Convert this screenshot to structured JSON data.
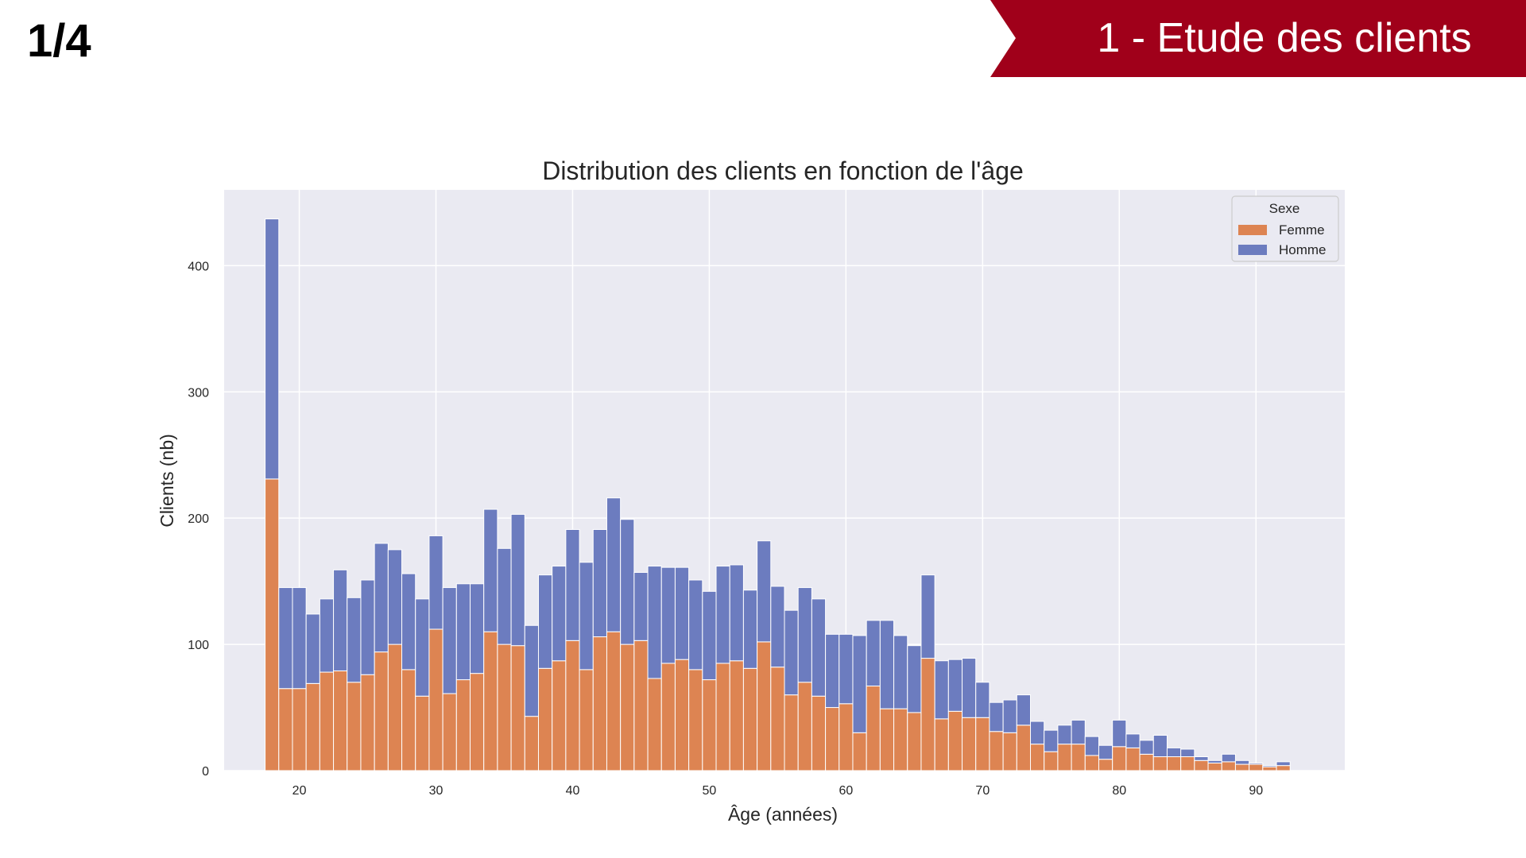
{
  "slide": {
    "number": "1/4",
    "section_title": "1 - Etude des clients",
    "banner_color": "#A0001A"
  },
  "chart_data": {
    "type": "bar",
    "stacked": true,
    "title": "Distribution des clients en fonction de l'âge",
    "xlabel": "Âge (années)",
    "ylabel": "Clients (nb)",
    "xlim": [
      14.5,
      96.5
    ],
    "ylim": [
      0,
      460
    ],
    "xticks": [
      20,
      30,
      40,
      50,
      60,
      70,
      80,
      90
    ],
    "yticks": [
      0,
      100,
      200,
      300,
      400
    ],
    "grid": true,
    "legend": {
      "title": "Sexe",
      "placement": "top-right"
    },
    "colors": {
      "Femme": "#DD8452",
      "Homme": "#6C7CBF",
      "plot_background": "#EAEAF2"
    },
    "x": [
      18,
      19,
      20,
      21,
      22,
      23,
      24,
      25,
      26,
      27,
      28,
      29,
      30,
      31,
      32,
      33,
      34,
      35,
      36,
      37,
      38,
      39,
      40,
      41,
      42,
      43,
      44,
      45,
      46,
      47,
      48,
      49,
      50,
      51,
      52,
      53,
      54,
      55,
      56,
      57,
      58,
      59,
      60,
      61,
      62,
      63,
      64,
      65,
      66,
      67,
      68,
      69,
      70,
      71,
      72,
      73,
      74,
      75,
      76,
      77,
      78,
      79,
      80,
      81,
      82,
      83,
      84,
      85,
      86,
      87,
      88,
      89,
      90,
      91,
      92
    ],
    "series": [
      {
        "name": "Femme",
        "values": [
          231,
          65,
          65,
          69,
          78,
          79,
          70,
          76,
          94,
          100,
          80,
          59,
          112,
          61,
          72,
          77,
          110,
          100,
          99,
          43,
          81,
          87,
          103,
          80,
          106,
          110,
          100,
          103,
          73,
          85,
          88,
          80,
          72,
          85,
          87,
          81,
          102,
          82,
          60,
          70,
          59,
          50,
          53,
          30,
          67,
          49,
          49,
          46,
          89,
          41,
          47,
          42,
          42,
          31,
          30,
          36,
          21,
          15,
          21,
          21,
          12,
          9,
          19,
          18,
          13,
          11,
          11,
          11,
          8,
          6,
          7,
          5,
          5,
          3,
          4
        ]
      },
      {
        "name": "Homme",
        "values": [
          206,
          80,
          80,
          55,
          58,
          80,
          67,
          75,
          86,
          75,
          76,
          77,
          74,
          84,
          76,
          71,
          97,
          76,
          104,
          72,
          74,
          75,
          88,
          85,
          85,
          106,
          99,
          54,
          89,
          76,
          73,
          71,
          70,
          77,
          76,
          62,
          80,
          64,
          67,
          75,
          77,
          58,
          55,
          77,
          52,
          70,
          58,
          53,
          66,
          46,
          41,
          47,
          28,
          23,
          26,
          24,
          18,
          17,
          15,
          19,
          15,
          11,
          21,
          11,
          11,
          17,
          7,
          6,
          3,
          2,
          6,
          3,
          1,
          1,
          3
        ]
      }
    ]
  }
}
